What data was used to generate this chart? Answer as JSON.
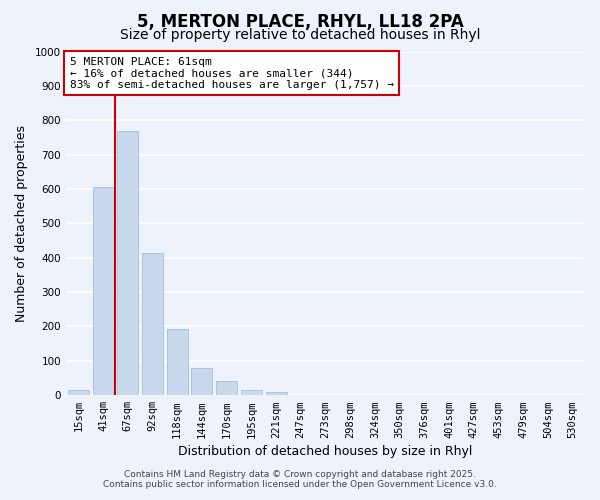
{
  "title": "5, MERTON PLACE, RHYL, LL18 2PA",
  "subtitle": "Size of property relative to detached houses in Rhyl",
  "xlabel": "Distribution of detached houses by size in Rhyl",
  "ylabel": "Number of detached properties",
  "bar_labels": [
    "15sqm",
    "41sqm",
    "67sqm",
    "92sqm",
    "118sqm",
    "144sqm",
    "170sqm",
    "195sqm",
    "221sqm",
    "247sqm",
    "273sqm",
    "298sqm",
    "324sqm",
    "350sqm",
    "376sqm",
    "401sqm",
    "427sqm",
    "453sqm",
    "479sqm",
    "504sqm",
    "530sqm"
  ],
  "bar_values": [
    15,
    607,
    770,
    413,
    193,
    78,
    40,
    16,
    10,
    0,
    0,
    0,
    0,
    0,
    0,
    0,
    0,
    0,
    0,
    0,
    0
  ],
  "bar_color": "#c8d8ed",
  "bar_edge_color": "#a8bedc",
  "vline_x_idx": 1.5,
  "vline_color": "#cc0000",
  "ylim": [
    0,
    1000
  ],
  "yticks": [
    0,
    100,
    200,
    300,
    400,
    500,
    600,
    700,
    800,
    900,
    1000
  ],
  "annotation_title": "5 MERTON PLACE: 61sqm",
  "annotation_line1": "← 16% of detached houses are smaller (344)",
  "annotation_line2": "83% of semi-detached houses are larger (1,757) →",
  "annotation_box_facecolor": "#ffffff",
  "annotation_box_edgecolor": "#cc0000",
  "footer_line1": "Contains HM Land Registry data © Crown copyright and database right 2025.",
  "footer_line2": "Contains public sector information licensed under the Open Government Licence v3.0.",
  "background_color": "#eef2fa",
  "grid_color": "#ffffff",
  "title_fontsize": 12,
  "subtitle_fontsize": 10,
  "axis_label_fontsize": 9,
  "tick_fontsize": 7.5,
  "annotation_title_fontsize": 8.5,
  "annotation_body_fontsize": 8,
  "footer_fontsize": 6.5
}
